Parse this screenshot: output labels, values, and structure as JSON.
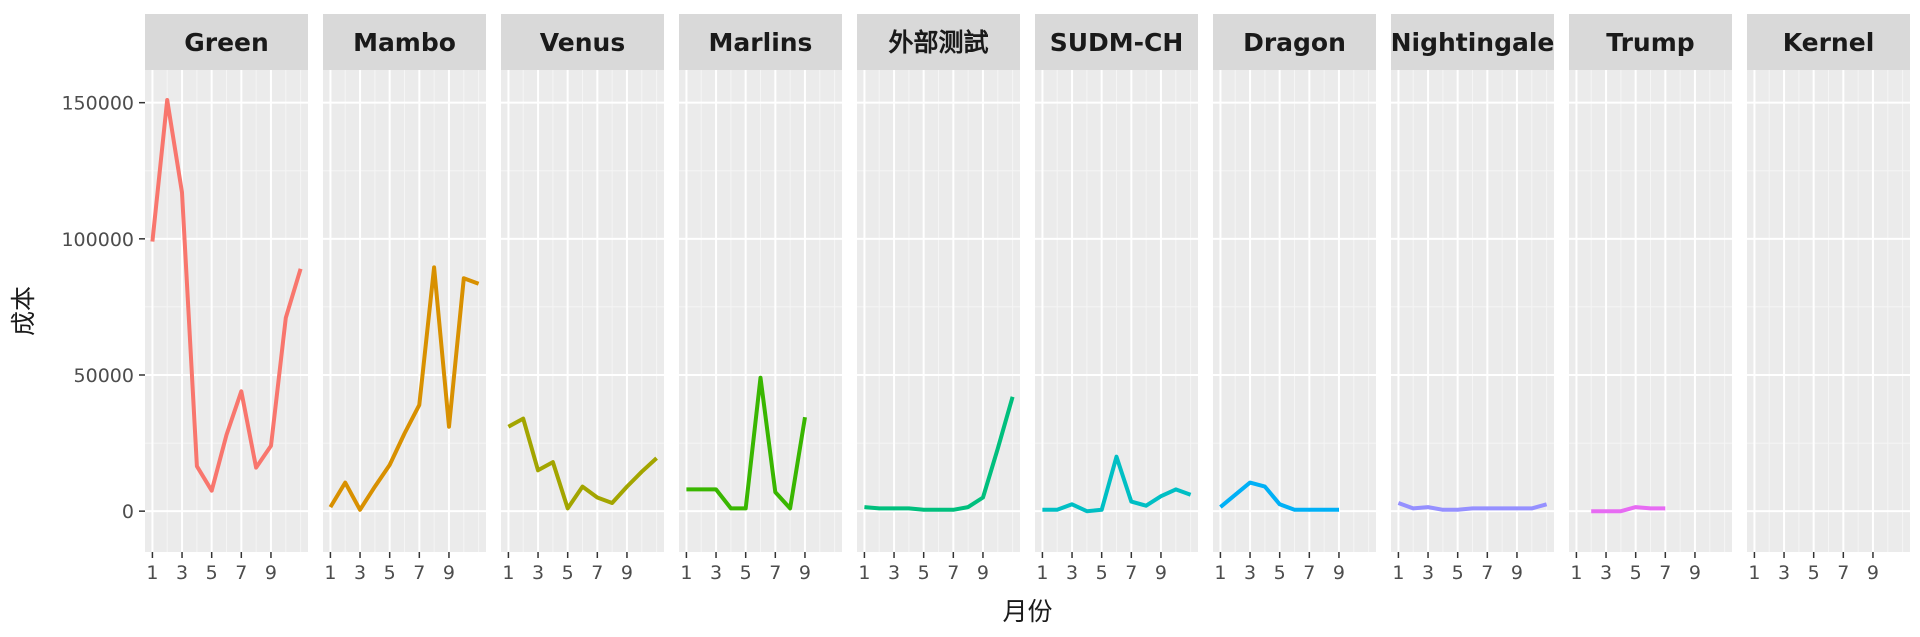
{
  "chart_data": {
    "type": "line",
    "xlabel": "月份",
    "ylabel": "成本",
    "xlim": [
      0.5,
      11.5
    ],
    "ylim": [
      -15000,
      162000
    ],
    "x_ticks": [
      1,
      3,
      5,
      7,
      9
    ],
    "y_ticks": [
      0,
      50000,
      100000,
      150000
    ],
    "y_tick_labels": [
      "0",
      "50000",
      "100000",
      "150000"
    ],
    "grid": true,
    "legend": "none",
    "facets": [
      {
        "name": "Green",
        "color": "#F8766D",
        "x": [
          1,
          2,
          3,
          4,
          5,
          6,
          7,
          8,
          9,
          10,
          11
        ],
        "y": [
          99000,
          151000,
          117000,
          16500,
          7500,
          28000,
          44000,
          16000,
          24000,
          71000,
          89000
        ]
      },
      {
        "name": "Mambo",
        "color": "#D89000",
        "x": [
          1,
          2,
          3,
          4,
          5,
          6,
          7,
          8,
          9,
          10,
          11
        ],
        "y": [
          1500,
          10500,
          500,
          9000,
          17000,
          28500,
          39000,
          89500,
          31000,
          85500,
          83500
        ]
      },
      {
        "name": "Venus",
        "color": "#A3A500",
        "x": [
          1,
          2,
          3,
          4,
          5,
          6,
          7,
          8,
          9,
          10,
          11
        ],
        "y": [
          31000,
          34000,
          15000,
          18000,
          1000,
          9000,
          5000,
          3000,
          9000,
          14500,
          19500
        ]
      },
      {
        "name": "Marlins",
        "color": "#39B600",
        "x": [
          1,
          2,
          3,
          4,
          5,
          6,
          7,
          8,
          9
        ],
        "y": [
          8000,
          8000,
          8000,
          1000,
          1000,
          49000,
          7000,
          1000,
          34500
        ]
      },
      {
        "name": "外部测試",
        "color": "#00BF7D",
        "x": [
          1,
          2,
          3,
          4,
          5,
          6,
          7,
          8,
          9,
          10,
          11
        ],
        "y": [
          1500,
          1000,
          1000,
          1000,
          500,
          500,
          500,
          1500,
          5000,
          23000,
          42000
        ]
      },
      {
        "name": "SUDM-CH",
        "color": "#00BFC4",
        "x": [
          1,
          2,
          3,
          4,
          5,
          6,
          7,
          8,
          9,
          10,
          11
        ],
        "y": [
          500,
          500,
          2500,
          0,
          500,
          20000,
          3500,
          2000,
          5500,
          8000,
          6000
        ]
      },
      {
        "name": "Dragon",
        "color": "#00B0F6",
        "x": [
          1,
          2,
          3,
          4,
          5,
          6,
          7,
          8,
          9
        ],
        "y": [
          1500,
          6000,
          10500,
          9000,
          2500,
          500,
          500,
          500,
          500
        ]
      },
      {
        "name": "Nightingale",
        "color": "#9590FF",
        "x": [
          1,
          2,
          3,
          4,
          5,
          6,
          7,
          8,
          9,
          10,
          11
        ],
        "y": [
          3000,
          1000,
          1500,
          500,
          500,
          1000,
          1000,
          1000,
          1000,
          1000,
          2500
        ]
      },
      {
        "name": "Trump",
        "color": "#E76BF3",
        "x": [
          2,
          3,
          4,
          5,
          6,
          7
        ],
        "y": [
          0,
          0,
          0,
          1500,
          1000,
          1000
        ]
      },
      {
        "name": "Kernel",
        "color": "#FF62BC",
        "x": [],
        "y": []
      }
    ]
  }
}
